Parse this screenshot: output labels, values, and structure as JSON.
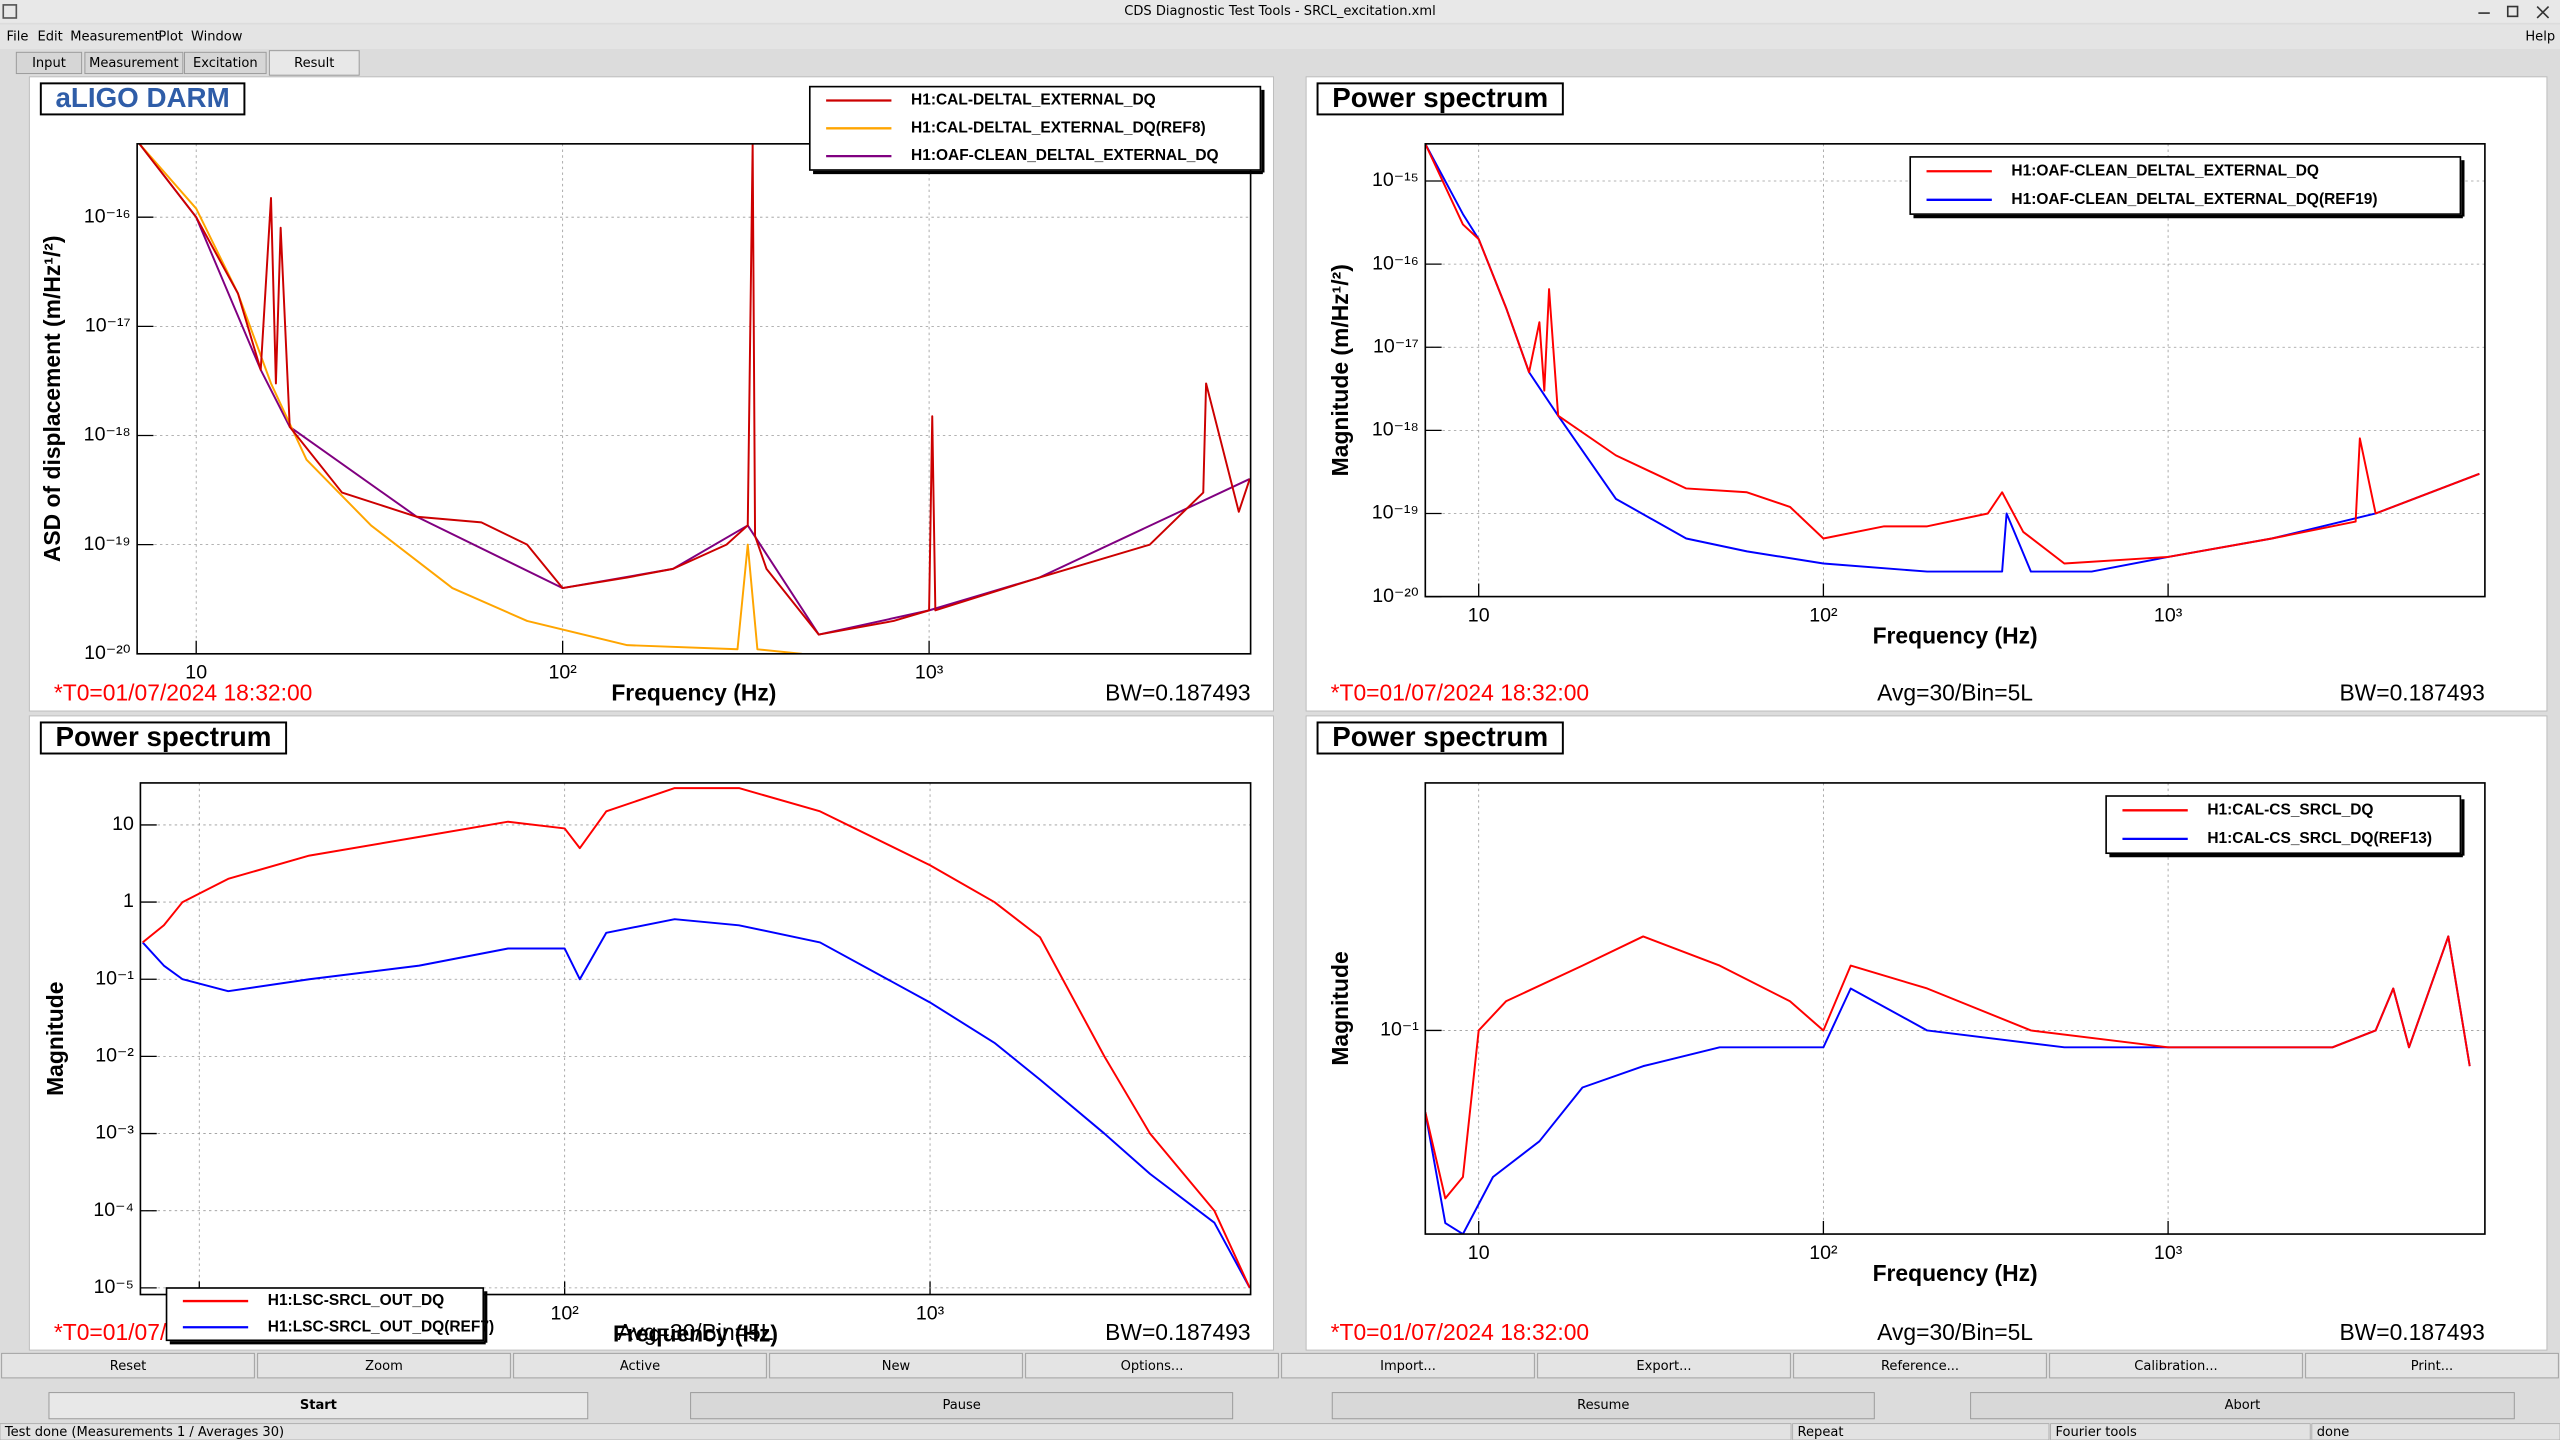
{
  "window": {
    "title": "CDS Diagnostic Test Tools - SRCL_excitation.xml"
  },
  "menu": [
    "File",
    "Edit",
    "Measurement",
    "Plot",
    "Window"
  ],
  "help": "Help",
  "tabs": [
    "Input",
    "Measurement",
    "Excitation",
    "Result"
  ],
  "chart_data": [
    {
      "type": "line",
      "title": "aLIGO DARM",
      "title_color": "#2f5da8",
      "xlabel": "Frequency (Hz)",
      "ylabel": "ASD of displacement (m/Hz¹/²)",
      "xscale": "log",
      "yscale": "log",
      "grid": true,
      "legend": "top-right",
      "xlim": [
        6.9,
        7540
      ],
      "ylim": [
        1e-20,
        4.7e-16
      ],
      "xticks": [
        10,
        {
          "value": 100,
          "label": "10²"
        },
        {
          "value": 1000,
          "label": "10³"
        }
      ],
      "yticks": [
        {
          "value": 1e-20,
          "label": "10⁻²⁰"
        },
        {
          "value": 1e-19,
          "label": "10⁻¹⁹"
        },
        {
          "value": 1e-18,
          "label": "10⁻¹⁸"
        },
        {
          "value": 1e-17,
          "label": "10⁻¹⁷"
        },
        {
          "value": 1e-16,
          "label": "10⁻¹⁶"
        }
      ],
      "annotations": [
        "*T0=01/07/2024 18:32:00",
        "BW=0.187493"
      ],
      "series": [
        {
          "name": "H1:CAL-DELTAL_EXTERNAL_DQ",
          "color": "#cc0000",
          "x": [
            7,
            10,
            13,
            15,
            16,
            16.5,
            17,
            18,
            25,
            40,
            60,
            80,
            100,
            150,
            200,
            280,
            320,
            330,
            335,
            360,
            500,
            800,
            1000,
            1020,
            1040,
            2000,
            4000,
            5600,
            5700,
            7000,
            7500
          ],
          "values": [
            4.7e-16,
            1e-16,
            2e-17,
            4e-18,
            1.5e-16,
            3e-18,
            8e-17,
            1.2e-18,
            3e-19,
            1.8e-19,
            1.6e-19,
            1e-19,
            4e-20,
            5e-20,
            6e-20,
            1e-19,
            1.5e-19,
            4.7e-16,
            1.2e-19,
            6e-20,
            1.5e-20,
            2e-20,
            2.5e-20,
            1.5e-18,
            2.5e-20,
            5e-20,
            1e-19,
            3e-19,
            3e-18,
            2e-19,
            4e-19
          ]
        },
        {
          "name": "H1:CAL-DELTAL_EXTERNAL_DQ(REF8)",
          "color": "#ffa500",
          "x": [
            7,
            10,
            13,
            16,
            20,
            30,
            50,
            80,
            150,
            300,
            320,
            340,
            450
          ],
          "values": [
            4.7e-16,
            1.2e-16,
            2e-17,
            3e-18,
            6e-19,
            1.5e-19,
            4e-20,
            2e-20,
            1.2e-20,
            1.1e-20,
            1e-19,
            1.1e-20,
            1e-20
          ]
        },
        {
          "name": "H1:OAF-CLEAN_DELTAL_EXTERNAL_DQ",
          "color": "#800080",
          "x": [
            7,
            10,
            15,
            18,
            40,
            100,
            200,
            320,
            500,
            1000,
            2000,
            7500
          ],
          "values": [
            4.7e-16,
            1e-16,
            4e-18,
            1.2e-18,
            1.8e-19,
            4e-20,
            6e-20,
            1.5e-19,
            1.5e-20,
            2.5e-20,
            5e-20,
            4e-19
          ]
        }
      ]
    },
    {
      "type": "line",
      "title": "Power spectrum",
      "title_color": "#000000",
      "xlabel": "Frequency (Hz)",
      "ylabel": "Magnitude (m/Hz¹/²)",
      "xscale": "log",
      "yscale": "log",
      "grid": true,
      "legend": "top-right",
      "xlim": [
        7,
        8300
      ],
      "ylim": [
        1e-20,
        2.8e-15
      ],
      "xticks": [
        10,
        {
          "value": 100,
          "label": "10²"
        },
        {
          "value": 1000,
          "label": "10³"
        }
      ],
      "yticks": [
        {
          "value": 1e-20,
          "label": "10⁻²⁰"
        },
        {
          "value": 1e-19,
          "label": "10⁻¹⁹"
        },
        {
          "value": 1e-18,
          "label": "10⁻¹⁸"
        },
        {
          "value": 1e-17,
          "label": "10⁻¹⁷"
        },
        {
          "value": 1e-16,
          "label": "10⁻¹⁶"
        },
        {
          "value": 1e-15,
          "label": "10⁻¹⁵"
        }
      ],
      "annotations": [
        "*T0=01/07/2024 18:32:00",
        "Avg=30/Bin=5L",
        "BW=0.187493"
      ],
      "series": [
        {
          "name": "H1:OAF-CLEAN_DELTAL_EXTERNAL_DQ",
          "color": "#ff0000",
          "x": [
            7,
            9,
            10,
            12,
            14,
            15,
            15.5,
            16,
            17,
            25,
            40,
            60,
            80,
            100,
            150,
            200,
            300,
            330,
            380,
            500,
            1000,
            2000,
            3500,
            3600,
            4000,
            8000
          ],
          "values": [
            2.8e-15,
            3e-16,
            2e-16,
            3e-17,
            5e-18,
            2e-17,
            3e-18,
            5e-17,
            1.5e-18,
            5e-19,
            2e-19,
            1.8e-19,
            1.2e-19,
            5e-20,
            7e-20,
            7e-20,
            1e-19,
            1.8e-19,
            6e-20,
            2.5e-20,
            3e-20,
            5e-20,
            8e-20,
            8e-19,
            1e-19,
            3e-19
          ]
        },
        {
          "name": "H1:OAF-CLEAN_DELTAL_EXTERNAL_DQ(REF19)",
          "color": "#0000ff",
          "x": [
            7,
            9,
            10,
            12,
            14,
            17,
            25,
            40,
            60,
            100,
            200,
            330,
            340,
            400,
            600,
            1000,
            2000,
            4000,
            8000
          ],
          "values": [
            2.8e-15,
            4e-16,
            2e-16,
            3e-17,
            5e-18,
            1.5e-18,
            1.5e-19,
            5e-20,
            3.5e-20,
            2.5e-20,
            2e-20,
            2e-20,
            1e-19,
            2e-20,
            2e-20,
            3e-20,
            5e-20,
            1e-19,
            3e-19
          ]
        }
      ]
    },
    {
      "type": "line",
      "title": "Power spectrum",
      "title_color": "#000000",
      "xlabel": "Frequency (Hz)",
      "ylabel": "Magnitude",
      "xscale": "log",
      "yscale": "log",
      "grid": true,
      "legend": "bottom-left",
      "xlim": [
        6.9,
        7540
      ],
      "ylim": [
        8.2e-06,
        35
      ],
      "xticks": [
        10,
        {
          "value": 100,
          "label": "10²"
        },
        {
          "value": 1000,
          "label": "10³"
        }
      ],
      "yticks": [
        {
          "value": 1e-05,
          "label": "10⁻⁵"
        },
        {
          "value": 0.0001,
          "label": "10⁻⁴"
        },
        {
          "value": 0.001,
          "label": "10⁻³"
        },
        {
          "value": 0.01,
          "label": "10⁻²"
        },
        {
          "value": 0.1,
          "label": "10⁻¹"
        },
        1,
        10
      ],
      "annotations": [
        "*T0=01/07/2024 18:32:00",
        "Avg=30/Bin=5L",
        "BW=0.187493"
      ],
      "series": [
        {
          "name": "H1:LSC-SRCL_OUT_DQ",
          "color": "#ff0000",
          "x": [
            7,
            8,
            9,
            12,
            20,
            40,
            70,
            100,
            110,
            130,
            200,
            300,
            500,
            1000,
            1500,
            2000,
            3000,
            4000,
            6000,
            7500
          ],
          "values": [
            0.3,
            0.5,
            1,
            2,
            4,
            7,
            11,
            9,
            5,
            15,
            30,
            30,
            15,
            3,
            1,
            0.35,
            0.01,
            0.001,
            0.0001,
            1e-05
          ]
        },
        {
          "name": "H1:LSC-SRCL_OUT_DQ(REF7)",
          "color": "#0000ff",
          "x": [
            7,
            8,
            9,
            12,
            20,
            40,
            70,
            100,
            110,
            130,
            200,
            300,
            500,
            1000,
            1500,
            2000,
            3000,
            4000,
            6000,
            7500
          ],
          "values": [
            0.3,
            0.15,
            0.1,
            0.07,
            0.1,
            0.15,
            0.25,
            0.25,
            0.1,
            0.4,
            0.6,
            0.5,
            0.3,
            0.05,
            0.015,
            0.005,
            0.001,
            0.0003,
            7e-05,
            1e-05
          ]
        }
      ]
    },
    {
      "type": "line",
      "title": "Power spectrum",
      "title_color": "#000000",
      "xlabel": "Frequency (Hz)",
      "ylabel": "Magnitude",
      "xscale": "log",
      "yscale": "log",
      "grid": true,
      "legend": "top-right",
      "xlim": [
        7,
        8300
      ],
      "ylim": [
        0.028,
        0.47
      ],
      "xticks": [
        10,
        {
          "value": 100,
          "label": "10²"
        },
        {
          "value": 1000,
          "label": "10³"
        }
      ],
      "yticks": [
        {
          "value": 0.1,
          "label": "10⁻¹"
        }
      ],
      "annotations": [
        "*T0=01/07/2024 18:32:00",
        "Avg=30/Bin=5L",
        "BW=0.187493"
      ],
      "series": [
        {
          "name": "H1:CAL-CS_SRCL_DQ",
          "color": "#ff0000",
          "x": [
            7,
            8,
            9,
            10,
            12,
            20,
            30,
            50,
            80,
            100,
            120,
            200,
            400,
            1000,
            3000,
            4000,
            4500,
            5000,
            6500,
            7500
          ],
          "values": [
            0.06,
            0.035,
            0.04,
            0.1,
            0.12,
            0.15,
            0.18,
            0.15,
            0.12,
            0.1,
            0.15,
            0.13,
            0.1,
            0.09,
            0.09,
            0.1,
            0.13,
            0.09,
            0.18,
            0.08
          ]
        },
        {
          "name": "H1:CAL-CS_SRCL_DQ(REF13)",
          "color": "#0000ff",
          "x": [
            7,
            8,
            9,
            11,
            15,
            20,
            30,
            50,
            100,
            120,
            200,
            500,
            1000,
            3000,
            4000,
            4500,
            5000,
            6500,
            7500
          ],
          "values": [
            0.06,
            0.03,
            0.028,
            0.04,
            0.05,
            0.07,
            0.08,
            0.09,
            0.09,
            0.13,
            0.1,
            0.09,
            0.09,
            0.09,
            0.1,
            0.13,
            0.09,
            0.18,
            0.08
          ]
        }
      ]
    }
  ],
  "buttons": [
    "Reset",
    "Zoom",
    "Active",
    "New",
    "Options...",
    "Import...",
    "Export...",
    "Reference...",
    "Calibration...",
    "Print..."
  ],
  "run_buttons": [
    "Start",
    "Pause",
    "Resume",
    "Abort"
  ],
  "status": [
    "Test done (Measurements 1 / Averages 30)",
    "Repeat",
    "Fourier tools",
    "done"
  ]
}
